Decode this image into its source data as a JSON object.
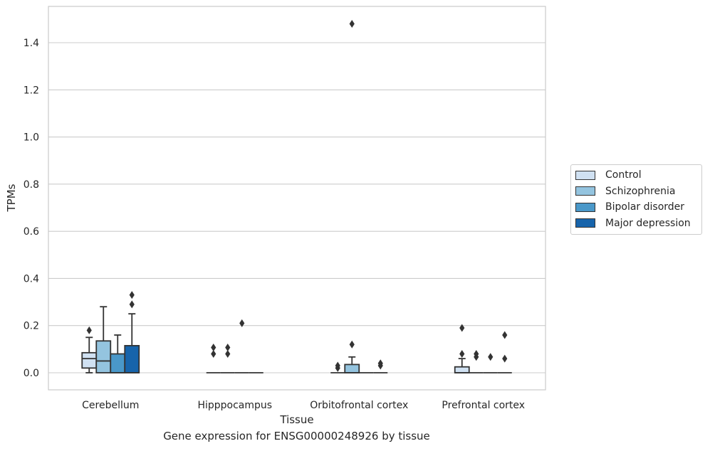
{
  "caption": "Gene expression for ENSG00000248926 by tissue",
  "chart_data": {
    "type": "box",
    "title": "",
    "xlabel": "Tissue",
    "ylabel": "TPMs",
    "ylim": [
      -0.072,
      1.56
    ],
    "yticks": [
      0.0,
      0.2,
      0.4,
      0.6,
      0.8,
      1.0,
      1.2,
      1.4
    ],
    "ytick_labels": [
      "0.0",
      "0.2",
      "0.4",
      "0.6",
      "0.8",
      "1.0",
      "1.2",
      "1.4"
    ],
    "grid": "horizontal",
    "legend_position": "right",
    "categories": [
      "Cerebellum",
      "Hipppocampus",
      "Orbitofrontal cortex",
      "Prefrontal cortex"
    ],
    "series": [
      {
        "name": "Control",
        "color": "#d0e1f2",
        "boxes": [
          {
            "whislo": 0.0,
            "q1": 0.02,
            "med": 0.06,
            "q3": 0.085,
            "whishi": 0.15,
            "fliers": [
              0.18
            ]
          },
          {
            "whislo": 0.0,
            "q1": 0.0,
            "med": 0.0,
            "q3": 0.0,
            "whishi": 0.0,
            "fliers": [
              0.08,
              0.107
            ]
          },
          {
            "whislo": 0.0,
            "q1": 0.0,
            "med": 0.0,
            "q3": 0.0,
            "whishi": 0.0,
            "fliers": [
              0.02,
              0.03
            ]
          },
          {
            "whislo": 0.0,
            "q1": 0.0,
            "med": 0.0,
            "q3": 0.025,
            "whishi": 0.06,
            "fliers": [
              0.08,
              0.19
            ]
          }
        ]
      },
      {
        "name": "Schizophrenia",
        "color": "#94c4df",
        "boxes": [
          {
            "whislo": 0.0,
            "q1": 0.0,
            "med": 0.05,
            "q3": 0.135,
            "whishi": 0.28,
            "fliers": []
          },
          {
            "whislo": 0.0,
            "q1": 0.0,
            "med": 0.0,
            "q3": 0.0,
            "whishi": 0.0,
            "fliers": [
              0.08,
              0.107
            ]
          },
          {
            "whislo": 0.0,
            "q1": 0.0,
            "med": 0.0,
            "q3": 0.035,
            "whishi": 0.067,
            "fliers": [
              0.12,
              1.48
            ]
          },
          {
            "whislo": 0.0,
            "q1": 0.0,
            "med": 0.0,
            "q3": 0.0,
            "whishi": 0.0,
            "fliers": [
              0.067,
              0.08
            ]
          }
        ]
      },
      {
        "name": "Bipolar disorder",
        "color": "#4a98c9",
        "boxes": [
          {
            "whislo": 0.0,
            "q1": 0.0,
            "med": 0.0,
            "q3": 0.08,
            "whishi": 0.16,
            "fliers": []
          },
          {
            "whislo": 0.0,
            "q1": 0.0,
            "med": 0.0,
            "q3": 0.0,
            "whishi": 0.0,
            "fliers": [
              0.21
            ]
          },
          {
            "whislo": 0.0,
            "q1": 0.0,
            "med": 0.0,
            "q3": 0.0,
            "whishi": 0.0,
            "fliers": []
          },
          {
            "whislo": 0.0,
            "q1": 0.0,
            "med": 0.0,
            "q3": 0.0,
            "whishi": 0.0,
            "fliers": [
              0.067
            ]
          }
        ]
      },
      {
        "name": "Major depression",
        "color": "#1764ab",
        "boxes": [
          {
            "whislo": 0.0,
            "q1": 0.0,
            "med": 0.0,
            "q3": 0.115,
            "whishi": 0.25,
            "fliers": [
              0.29,
              0.33
            ]
          },
          {
            "whislo": 0.0,
            "q1": 0.0,
            "med": 0.0,
            "q3": 0.0,
            "whishi": 0.0,
            "fliers": []
          },
          {
            "whislo": 0.0,
            "q1": 0.0,
            "med": 0.0,
            "q3": 0.0,
            "whishi": 0.0,
            "fliers": [
              0.03,
              0.04
            ]
          },
          {
            "whislo": 0.0,
            "q1": 0.0,
            "med": 0.0,
            "q3": 0.0,
            "whishi": 0.0,
            "fliers": [
              0.06,
              0.16
            ]
          }
        ]
      }
    ]
  }
}
